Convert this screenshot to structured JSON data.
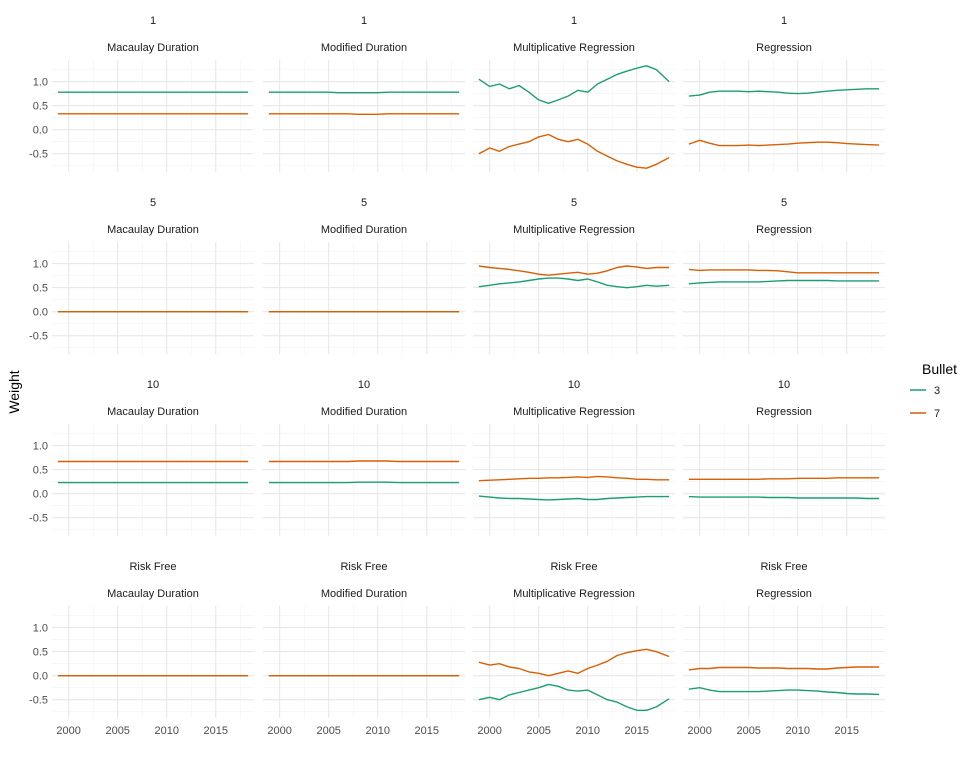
{
  "chart_data": {
    "type": "line",
    "ylabel": "Weight",
    "xlabel": "",
    "xlim": [
      1998.3,
      2018.9
    ],
    "ylim": [
      -0.88,
      1.45
    ],
    "x_ticks": [
      2000,
      2005,
      2010,
      2015
    ],
    "y_ticks": [
      -0.5,
      0.0,
      0.5,
      1.0
    ],
    "row_labels": [
      "1",
      "5",
      "10",
      "Risk Free"
    ],
    "col_labels": [
      "Macaulay Duration",
      "Modified Duration",
      "Multiplicative Regression",
      "Regression"
    ],
    "grid": true,
    "legend": {
      "title": "Bullet",
      "position": "right",
      "entries": [
        {
          "name": "3",
          "color": "#1b9e77"
        },
        {
          "name": "7",
          "color": "#d95f02"
        }
      ]
    },
    "series_x": [
      1998.9,
      2000,
      2001,
      2002,
      2003,
      2004,
      2005,
      2006,
      2007,
      2008,
      2009,
      2010,
      2011,
      2012,
      2013,
      2014,
      2015,
      2016,
      2017,
      2018.3
    ],
    "panels": [
      {
        "row": "1",
        "col": "Macaulay Duration",
        "series": [
          {
            "name": "3",
            "values": [
              0.78,
              0.78,
              0.78,
              0.78,
              0.78,
              0.78,
              0.78,
              0.78,
              0.78,
              0.78,
              0.78,
              0.78,
              0.78,
              0.78,
              0.78,
              0.78,
              0.78,
              0.78,
              0.78,
              0.78
            ]
          },
          {
            "name": "7",
            "values": [
              0.33,
              0.33,
              0.33,
              0.33,
              0.33,
              0.33,
              0.33,
              0.33,
              0.33,
              0.33,
              0.33,
              0.33,
              0.33,
              0.33,
              0.33,
              0.33,
              0.33,
              0.33,
              0.33,
              0.33
            ]
          }
        ]
      },
      {
        "row": "1",
        "col": "Modified Duration",
        "series": [
          {
            "name": "3",
            "values": [
              0.78,
              0.78,
              0.78,
              0.78,
              0.78,
              0.78,
              0.78,
              0.77,
              0.77,
              0.77,
              0.77,
              0.77,
              0.78,
              0.78,
              0.78,
              0.78,
              0.78,
              0.78,
              0.78,
              0.78
            ]
          },
          {
            "name": "7",
            "values": [
              0.33,
              0.33,
              0.33,
              0.33,
              0.33,
              0.33,
              0.33,
              0.33,
              0.33,
              0.32,
              0.32,
              0.32,
              0.33,
              0.33,
              0.33,
              0.33,
              0.33,
              0.33,
              0.33,
              0.33
            ]
          }
        ]
      },
      {
        "row": "1",
        "col": "Multiplicative Regression",
        "series": [
          {
            "name": "3",
            "values": [
              1.05,
              0.9,
              0.95,
              0.85,
              0.92,
              0.78,
              0.62,
              0.55,
              0.62,
              0.7,
              0.82,
              0.78,
              0.95,
              1.05,
              1.15,
              1.22,
              1.28,
              1.33,
              1.25,
              1.0
            ]
          },
          {
            "name": "7",
            "values": [
              -0.5,
              -0.38,
              -0.45,
              -0.35,
              -0.3,
              -0.25,
              -0.15,
              -0.1,
              -0.2,
              -0.25,
              -0.2,
              -0.3,
              -0.45,
              -0.55,
              -0.65,
              -0.72,
              -0.78,
              -0.8,
              -0.72,
              -0.58
            ]
          }
        ]
      },
      {
        "row": "1",
        "col": "Regression",
        "series": [
          {
            "name": "3",
            "values": [
              0.7,
              0.72,
              0.78,
              0.8,
              0.8,
              0.8,
              0.79,
              0.8,
              0.79,
              0.78,
              0.76,
              0.75,
              0.76,
              0.78,
              0.8,
              0.82,
              0.83,
              0.84,
              0.85,
              0.85
            ]
          },
          {
            "name": "7",
            "values": [
              -0.3,
              -0.22,
              -0.28,
              -0.33,
              -0.33,
              -0.33,
              -0.32,
              -0.33,
              -0.32,
              -0.31,
              -0.3,
              -0.28,
              -0.27,
              -0.26,
              -0.26,
              -0.27,
              -0.29,
              -0.3,
              -0.31,
              -0.32
            ]
          }
        ]
      },
      {
        "row": "5",
        "col": "Macaulay Duration",
        "series": [
          {
            "name": "3",
            "values": [
              0,
              0,
              0,
              0,
              0,
              0,
              0,
              0,
              0,
              0,
              0,
              0,
              0,
              0,
              0,
              0,
              0,
              0,
              0,
              0
            ]
          },
          {
            "name": "7",
            "values": [
              0,
              0,
              0,
              0,
              0,
              0,
              0,
              0,
              0,
              0,
              0,
              0,
              0,
              0,
              0,
              0,
              0,
              0,
              0,
              0
            ]
          }
        ]
      },
      {
        "row": "5",
        "col": "Modified Duration",
        "series": [
          {
            "name": "3",
            "values": [
              0,
              0,
              0,
              0,
              0,
              0,
              0,
              0,
              0,
              0,
              0,
              0,
              0,
              0,
              0,
              0,
              0,
              0,
              0,
              0
            ]
          },
          {
            "name": "7",
            "values": [
              0,
              0,
              0,
              0,
              0,
              0,
              0,
              0,
              0,
              0,
              0,
              0,
              0,
              0,
              0,
              0,
              0,
              0,
              0,
              0
            ]
          }
        ]
      },
      {
        "row": "5",
        "col": "Multiplicative Regression",
        "series": [
          {
            "name": "3",
            "values": [
              0.52,
              0.55,
              0.58,
              0.6,
              0.62,
              0.65,
              0.68,
              0.7,
              0.7,
              0.68,
              0.65,
              0.68,
              0.62,
              0.55,
              0.52,
              0.5,
              0.52,
              0.55,
              0.53,
              0.55
            ]
          },
          {
            "name": "7",
            "values": [
              0.95,
              0.92,
              0.9,
              0.88,
              0.85,
              0.82,
              0.78,
              0.76,
              0.78,
              0.8,
              0.82,
              0.78,
              0.8,
              0.85,
              0.92,
              0.95,
              0.93,
              0.9,
              0.92,
              0.92
            ]
          }
        ]
      },
      {
        "row": "5",
        "col": "Regression",
        "series": [
          {
            "name": "3",
            "values": [
              0.58,
              0.6,
              0.61,
              0.62,
              0.62,
              0.62,
              0.62,
              0.62,
              0.63,
              0.64,
              0.65,
              0.65,
              0.65,
              0.65,
              0.65,
              0.64,
              0.64,
              0.64,
              0.64,
              0.64
            ]
          },
          {
            "name": "7",
            "values": [
              0.88,
              0.86,
              0.87,
              0.87,
              0.87,
              0.87,
              0.87,
              0.86,
              0.86,
              0.85,
              0.83,
              0.81,
              0.81,
              0.81,
              0.81,
              0.81,
              0.81,
              0.81,
              0.81,
              0.81
            ]
          }
        ]
      },
      {
        "row": "10",
        "col": "Macaulay Duration",
        "series": [
          {
            "name": "3",
            "values": [
              0.23,
              0.23,
              0.23,
              0.23,
              0.23,
              0.23,
              0.23,
              0.23,
              0.23,
              0.23,
              0.23,
              0.23,
              0.23,
              0.23,
              0.23,
              0.23,
              0.23,
              0.23,
              0.23,
              0.23
            ]
          },
          {
            "name": "7",
            "values": [
              0.67,
              0.67,
              0.67,
              0.67,
              0.67,
              0.67,
              0.67,
              0.67,
              0.67,
              0.67,
              0.67,
              0.67,
              0.67,
              0.67,
              0.67,
              0.67,
              0.67,
              0.67,
              0.67,
              0.67
            ]
          }
        ]
      },
      {
        "row": "10",
        "col": "Modified Duration",
        "series": [
          {
            "name": "3",
            "values": [
              0.23,
              0.23,
              0.23,
              0.23,
              0.23,
              0.23,
              0.23,
              0.23,
              0.23,
              0.24,
              0.24,
              0.24,
              0.24,
              0.23,
              0.23,
              0.23,
              0.23,
              0.23,
              0.23,
              0.23
            ]
          },
          {
            "name": "7",
            "values": [
              0.67,
              0.67,
              0.67,
              0.67,
              0.67,
              0.67,
              0.67,
              0.67,
              0.67,
              0.68,
              0.68,
              0.68,
              0.68,
              0.67,
              0.67,
              0.67,
              0.67,
              0.67,
              0.67,
              0.67
            ]
          }
        ]
      },
      {
        "row": "10",
        "col": "Multiplicative Regression",
        "series": [
          {
            "name": "3",
            "values": [
              -0.05,
              -0.07,
              -0.09,
              -0.1,
              -0.1,
              -0.11,
              -0.12,
              -0.13,
              -0.12,
              -0.11,
              -0.1,
              -0.12,
              -0.12,
              -0.1,
              -0.09,
              -0.08,
              -0.07,
              -0.06,
              -0.06,
              -0.06
            ]
          },
          {
            "name": "7",
            "values": [
              0.27,
              0.28,
              0.29,
              0.3,
              0.31,
              0.32,
              0.32,
              0.33,
              0.33,
              0.34,
              0.35,
              0.34,
              0.36,
              0.35,
              0.33,
              0.32,
              0.3,
              0.3,
              0.29,
              0.29
            ]
          }
        ]
      },
      {
        "row": "10",
        "col": "Regression",
        "series": [
          {
            "name": "3",
            "values": [
              -0.06,
              -0.07,
              -0.07,
              -0.07,
              -0.07,
              -0.07,
              -0.07,
              -0.07,
              -0.08,
              -0.08,
              -0.08,
              -0.09,
              -0.09,
              -0.09,
              -0.09,
              -0.09,
              -0.09,
              -0.09,
              -0.1,
              -0.1
            ]
          },
          {
            "name": "7",
            "values": [
              0.3,
              0.3,
              0.3,
              0.3,
              0.3,
              0.3,
              0.3,
              0.3,
              0.31,
              0.31,
              0.31,
              0.32,
              0.32,
              0.32,
              0.32,
              0.33,
              0.33,
              0.33,
              0.33,
              0.33
            ]
          }
        ]
      },
      {
        "row": "Risk Free",
        "col": "Macaulay Duration",
        "series": [
          {
            "name": "3",
            "values": [
              0,
              0,
              0,
              0,
              0,
              0,
              0,
              0,
              0,
              0,
              0,
              0,
              0,
              0,
              0,
              0,
              0,
              0,
              0,
              0
            ]
          },
          {
            "name": "7",
            "values": [
              0,
              0,
              0,
              0,
              0,
              0,
              0,
              0,
              0,
              0,
              0,
              0,
              0,
              0,
              0,
              0,
              0,
              0,
              0,
              0
            ]
          }
        ]
      },
      {
        "row": "Risk Free",
        "col": "Modified Duration",
        "series": [
          {
            "name": "3",
            "values": [
              0,
              0,
              0,
              0,
              0,
              0,
              0,
              0,
              0,
              0,
              0,
              0,
              0,
              0,
              0,
              0,
              0,
              0,
              0,
              0
            ]
          },
          {
            "name": "7",
            "values": [
              0,
              0,
              0,
              0,
              0,
              0,
              0,
              0,
              0,
              0,
              0,
              0,
              0,
              0,
              0,
              0,
              0,
              0,
              0,
              0
            ]
          }
        ]
      },
      {
        "row": "Risk Free",
        "col": "Multiplicative Regression",
        "series": [
          {
            "name": "3",
            "values": [
              -0.5,
              -0.45,
              -0.5,
              -0.4,
              -0.35,
              -0.3,
              -0.25,
              -0.18,
              -0.22,
              -0.3,
              -0.32,
              -0.3,
              -0.4,
              -0.5,
              -0.55,
              -0.65,
              -0.72,
              -0.72,
              -0.65,
              -0.48
            ]
          },
          {
            "name": "7",
            "values": [
              0.28,
              0.22,
              0.25,
              0.18,
              0.15,
              0.08,
              0.05,
              0.0,
              0.05,
              0.1,
              0.05,
              0.15,
              0.22,
              0.3,
              0.42,
              0.48,
              0.52,
              0.55,
              0.5,
              0.4
            ]
          }
        ]
      },
      {
        "row": "Risk Free",
        "col": "Regression",
        "series": [
          {
            "name": "3",
            "values": [
              -0.28,
              -0.25,
              -0.3,
              -0.33,
              -0.33,
              -0.33,
              -0.33,
              -0.33,
              -0.32,
              -0.31,
              -0.3,
              -0.3,
              -0.31,
              -0.32,
              -0.34,
              -0.35,
              -0.37,
              -0.38,
              -0.38,
              -0.39
            ]
          },
          {
            "name": "7",
            "values": [
              0.12,
              0.15,
              0.15,
              0.17,
              0.17,
              0.17,
              0.17,
              0.16,
              0.16,
              0.16,
              0.15,
              0.15,
              0.15,
              0.14,
              0.14,
              0.16,
              0.17,
              0.18,
              0.18,
              0.18
            ]
          }
        ]
      }
    ]
  }
}
